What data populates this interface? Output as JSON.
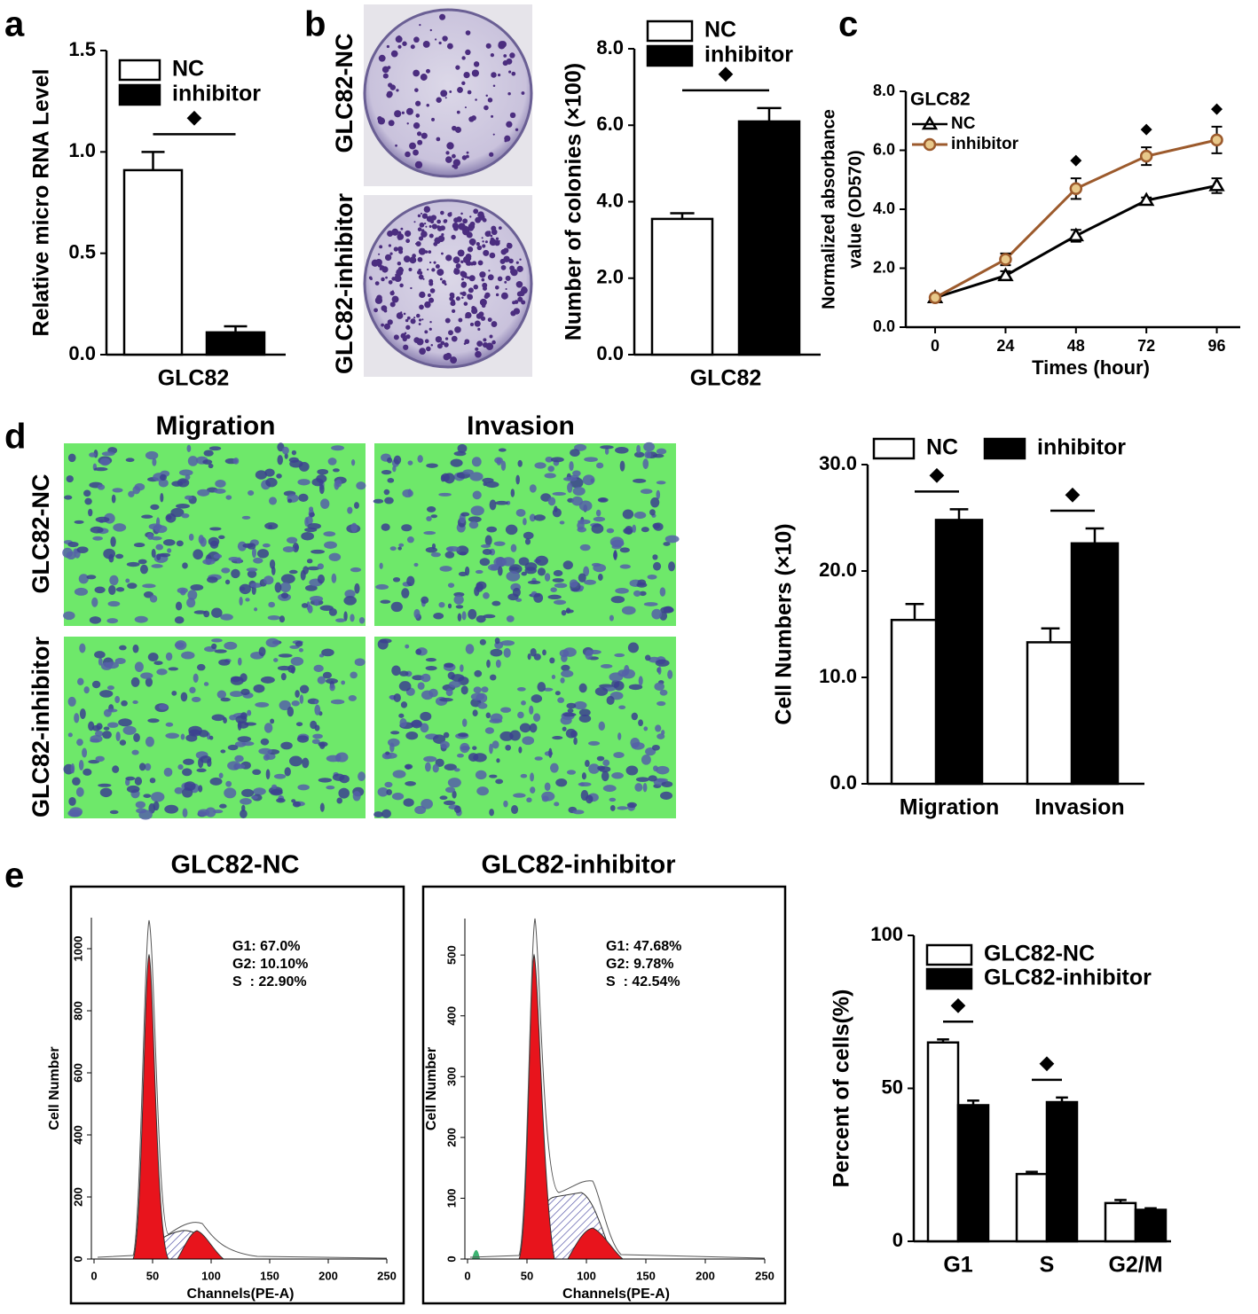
{
  "chart_data": [
    {
      "type": "bar",
      "panel": "a",
      "ylabel": "Relative micro RNA Level",
      "categories": [
        "GLC82"
      ],
      "series": [
        {
          "name": "NC",
          "color": "#ffffff",
          "values": [
            0.91
          ],
          "errors": [
            0.09
          ]
        },
        {
          "name": "inhibitor",
          "color": "#000000",
          "values": [
            0.11
          ],
          "errors": [
            0.03
          ]
        }
      ],
      "ylim": [
        0,
        1.5
      ],
      "yticks": [
        {
          "value": 0,
          "label": "0.0"
        },
        0.5,
        {
          "value": 1,
          "label": "1.0"
        },
        1.5
      ],
      "significance": [
        "◆"
      ]
    },
    {
      "type": "bar",
      "panel": "b",
      "image_rows": [
        "GLC82-NC",
        "GLC82-inhibitor"
      ],
      "ylabel": "Number of colonies (×100)",
      "categories": [
        "GLC82"
      ],
      "series": [
        {
          "name": "NC",
          "color": "#ffffff",
          "values": [
            3.55
          ],
          "errors": [
            0.15
          ]
        },
        {
          "name": "inhibitor",
          "color": "#000000",
          "values": [
            6.1
          ],
          "errors": [
            0.35
          ]
        }
      ],
      "ylim": [
        0,
        8
      ],
      "yticks": [
        {
          "value": 0,
          "label": "0.0"
        },
        {
          "value": 2,
          "label": "2.0"
        },
        {
          "value": 4,
          "label": "4.0"
        },
        {
          "value": 6,
          "label": "6.0"
        },
        {
          "value": 8,
          "label": "8.0"
        }
      ],
      "significance": [
        "◆"
      ]
    },
    {
      "type": "line",
      "panel": "c",
      "legend_title": "GLC82",
      "xlabel": "Times (hour)",
      "ylabel": [
        "Normalized absorbance",
        "value (OD570)"
      ],
      "x": [
        0,
        24,
        48,
        72,
        96
      ],
      "xlim": [
        -10,
        104
      ],
      "xticks": [
        0,
        24,
        48,
        72,
        96
      ],
      "ylim": [
        0,
        8
      ],
      "yticks": [
        {
          "value": 0,
          "label": "0.0"
        },
        {
          "value": 2,
          "label": "2.0"
        },
        {
          "value": 4,
          "label": "4.0"
        },
        {
          "value": 6,
          "label": "6.0"
        },
        {
          "value": 8,
          "label": "8.0"
        }
      ],
      "series": [
        {
          "name": "NC",
          "color": "#000000",
          "marker": "triangle",
          "values": [
            1.0,
            1.75,
            3.1,
            4.3,
            4.8
          ],
          "errors": [
            0.1,
            0.15,
            0.2,
            0.1,
            0.25
          ]
        },
        {
          "name": "inhibitor",
          "color": "#9c5a2c",
          "marker": "circle",
          "values": [
            1.0,
            2.3,
            4.7,
            5.8,
            6.35
          ],
          "errors": [
            0.1,
            0.2,
            0.35,
            0.3,
            0.45
          ]
        }
      ],
      "significance": [
        null,
        null,
        "◆",
        "◆",
        "◆"
      ]
    },
    {
      "type": "bar",
      "panel": "d",
      "image_columns": [
        "Migration",
        "Invasion"
      ],
      "image_rows": [
        "GLC82-NC",
        "GLC82-inhibitor"
      ],
      "ylabel": "Cell Numbers (×10)",
      "categories": [
        "Migration",
        "Invasion"
      ],
      "series": [
        {
          "name": "NC",
          "color": "#ffffff",
          "values": [
            15.4,
            13.3
          ],
          "errors": [
            1.5,
            1.3
          ]
        },
        {
          "name": "inhibitor",
          "color": "#000000",
          "values": [
            24.8,
            22.6
          ],
          "errors": [
            1.0,
            1.4
          ]
        }
      ],
      "ylim": [
        0,
        30
      ],
      "yticks": [
        {
          "value": 0,
          "label": "0.0"
        },
        {
          "value": 10,
          "label": "10.0"
        },
        {
          "value": 20,
          "label": "20.0"
        },
        {
          "value": 30,
          "label": "30.0"
        }
      ],
      "significance": [
        "◆",
        "◆"
      ]
    },
    {
      "type": "flow",
      "panel": "e",
      "title": "GLC82-NC",
      "stats": [
        "G1: 67.0%",
        "G2: 10.10%",
        "S  : 22.90%"
      ],
      "xlabel": "Channels(PE-A)",
      "ylabel": "Cell Number",
      "xlim": [
        0,
        250
      ],
      "xticks": [
        0,
        50,
        100,
        150,
        200,
        250
      ],
      "ylim": [
        0,
        1100
      ],
      "yticks": [
        0,
        200,
        400,
        600,
        800,
        1000
      ]
    },
    {
      "type": "flow",
      "title": "GLC82-inhibitor",
      "stats": [
        "G1: 47.68%",
        "G2: 9.78%",
        "S  : 42.54%"
      ],
      "xlabel": "Channels(PE-A)",
      "ylabel": "Cell Number",
      "xlim": [
        0,
        250
      ],
      "xticks": [
        0,
        50,
        100,
        150,
        200,
        250
      ],
      "ylim": [
        0,
        560
      ],
      "yticks": [
        0,
        100,
        200,
        300,
        400,
        500
      ]
    },
    {
      "type": "bar",
      "ylabel": "Percent of cells(%)",
      "categories": [
        "G1",
        "S",
        "G2/M"
      ],
      "series": [
        {
          "name": "GLC82-NC",
          "color": "#ffffff",
          "values": [
            65,
            22,
            12.5
          ],
          "errors": [
            1,
            0.7,
            1
          ]
        },
        {
          "name": "GLC82-inhibitor",
          "color": "#000000",
          "values": [
            44.5,
            45.5,
            10.3
          ],
          "errors": [
            1.5,
            1.5,
            0.5
          ]
        }
      ],
      "ylim": [
        0,
        100
      ],
      "yticks": [
        0,
        50,
        100
      ],
      "significance": [
        "◆",
        "◆",
        null
      ]
    }
  ]
}
